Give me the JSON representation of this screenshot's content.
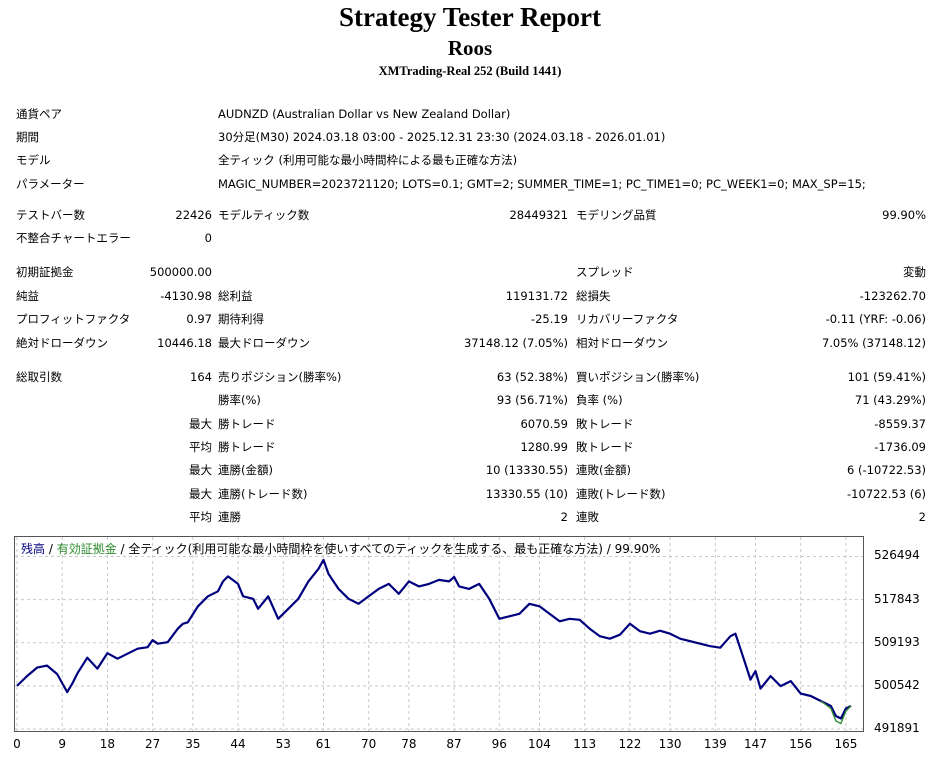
{
  "header": {
    "title": "Strategy Tester Report",
    "ea_name": "Roos",
    "server": "XMTrading-Real 252 (Build 1441)"
  },
  "settings": [
    {
      "label": "通貨ペア",
      "value": "AUDNZD (Australian Dollar vs New Zealand Dollar)"
    },
    {
      "label": "期間",
      "value": "30分足(M30) 2024.03.18 03:00 - 2025.12.31 23:30 (2024.03.18 - 2026.01.01)"
    },
    {
      "label": "モデル",
      "value": "全ティック (利用可能な最小時間枠による最も正確な方法)"
    },
    {
      "label": "パラメーター",
      "value": "MAGIC_NUMBER=2023721120; LOTS=0.1; GMT=2; SUMMER_TIME=1; PC_TIME1=0; PC_WEEK1=0; MAX_SP=15;"
    }
  ],
  "stats": {
    "bars_label": "テストバー数",
    "bars": "22426",
    "ticks_label": "モデルティック数",
    "ticks": "28449321",
    "quality_label": "モデリング品質",
    "quality": "99.90%",
    "mismatch_label": "不整合チャートエラー",
    "mismatch": "0",
    "deposit_label": "初期証拠金",
    "deposit": "500000.00",
    "spread_label": "スプレッド",
    "spread": "変動",
    "net_label": "純益",
    "net": "-4130.98",
    "gross_profit_label": "総利益",
    "gross_profit": "119131.72",
    "gross_loss_label": "総損失",
    "gross_loss": "-123262.70",
    "pf_label": "プロフィットファクタ",
    "pf": "0.97",
    "expected_label": "期待利得",
    "expected": "-25.19",
    "recovery_label": "リカバリーファクタ",
    "recovery": "-0.11 (YRF: -0.06)",
    "abs_dd_label": "絶対ドローダウン",
    "abs_dd": "10446.18",
    "max_dd_label": "最大ドローダウン",
    "max_dd": "37148.12 (7.05%)",
    "rel_dd_label": "相対ドローダウン",
    "rel_dd": "7.05% (37148.12)",
    "trades_label": "総取引数",
    "trades": "164",
    "short_label": "売りポジション(勝率%)",
    "short": "63 (52.38%)",
    "long_label": "買いポジション(勝率%)",
    "long": "101 (59.41%)",
    "win_pct_label": "勝率(%)",
    "win_pct": "93 (56.71%)",
    "loss_pct_label": "負率 (%)",
    "loss_pct": "71 (43.29%)",
    "max_label": "最大",
    "avg_label": "平均",
    "largest_win_label": "勝トレード",
    "largest_win": "6070.59",
    "largest_loss_label": "敗トレード",
    "largest_loss": "-8559.37",
    "avg_win_label": "勝トレード",
    "avg_win": "1280.99",
    "avg_loss_label": "敗トレード",
    "avg_loss": "-1736.09",
    "max_cons_wins_amt_label": "連勝(金額)",
    "max_cons_wins_amt": "10 (13330.55)",
    "max_cons_losses_amt_label": "連敗(金額)",
    "max_cons_losses_amt": "6 (-10722.53)",
    "max_cons_wins_cnt_label": "連勝(トレード数)",
    "max_cons_wins_cnt": "13330.55 (10)",
    "max_cons_losses_cnt_label": "連敗(トレード数)",
    "max_cons_losses_cnt": "-10722.53 (6)",
    "avg_cons_wins_label": "連勝",
    "avg_cons_wins": "2",
    "avg_cons_losses_label": "連敗",
    "avg_cons_losses": "2"
  },
  "chart_data": {
    "type": "line",
    "legend": {
      "balance": "残高",
      "sep1": " / ",
      "equity": "有効証拠金",
      "rest": " / 全ティック(利用可能な最小時間枠を使いすべてのティックを生成する、最も正確な方法) / 99.90%"
    },
    "colors": {
      "balance": "#00007f",
      "equity": "#2e8b2e"
    },
    "ylim": [
      491891,
      530000
    ],
    "xlim": [
      0,
      168
    ],
    "y_ticks": [
      526494,
      517843,
      509193,
      500542,
      491891
    ],
    "x_ticks": [
      0,
      9,
      18,
      27,
      35,
      44,
      53,
      61,
      70,
      78,
      87,
      96,
      104,
      113,
      122,
      130,
      139,
      147,
      156,
      165
    ],
    "grid": true,
    "series": [
      {
        "name": "残高",
        "x": [
          0,
          2,
          4,
          6,
          8,
          10,
          11,
          12,
          14,
          16,
          18,
          20,
          22,
          24,
          26,
          27,
          28,
          30,
          32,
          33,
          34,
          36,
          38,
          40,
          41,
          42,
          44,
          45,
          47,
          48,
          50,
          52,
          54,
          56,
          58,
          60,
          61,
          62,
          64,
          66,
          68,
          70,
          72,
          74,
          76,
          78,
          80,
          82,
          84,
          86,
          87,
          88,
          90,
          92,
          94,
          96,
          98,
          100,
          102,
          104,
          106,
          108,
          110,
          112,
          114,
          116,
          118,
          120,
          122,
          124,
          126,
          128,
          130,
          132,
          134,
          136,
          138,
          140,
          142,
          143,
          144,
          146,
          147,
          148,
          150,
          152,
          154,
          156,
          158,
          160,
          162,
          163,
          164,
          165,
          166
        ],
        "y": [
          500542,
          502500,
          504200,
          504600,
          502900,
          499300,
          501000,
          503000,
          506200,
          504000,
          507100,
          506000,
          507000,
          508000,
          508300,
          509700,
          509000,
          509300,
          512000,
          513000,
          513300,
          516500,
          518500,
          519500,
          521500,
          522500,
          521000,
          518500,
          518000,
          516000,
          518500,
          514000,
          516000,
          518000,
          521500,
          524000,
          525800,
          523000,
          520000,
          518000,
          517000,
          518500,
          520000,
          521000,
          519000,
          521500,
          520500,
          521000,
          521800,
          521500,
          522400,
          520500,
          520000,
          521000,
          518000,
          514000,
          514500,
          515000,
          517000,
          516500,
          515000,
          513500,
          514000,
          513800,
          512000,
          510500,
          510000,
          510800,
          513000,
          511500,
          511000,
          511600,
          511000,
          510000,
          509500,
          509000,
          508500,
          508200,
          510500,
          511000,
          508000,
          501800,
          503500,
          500000,
          502500,
          500500,
          501500,
          499000,
          498500,
          497500,
          496500,
          494500,
          494000,
          496000,
          496500
        ]
      },
      {
        "name": "有効証拠金",
        "x": [
          160,
          162,
          163,
          164,
          165,
          166
        ],
        "y": [
          497500,
          496000,
          493500,
          493000,
          495500,
          496500
        ]
      }
    ]
  }
}
